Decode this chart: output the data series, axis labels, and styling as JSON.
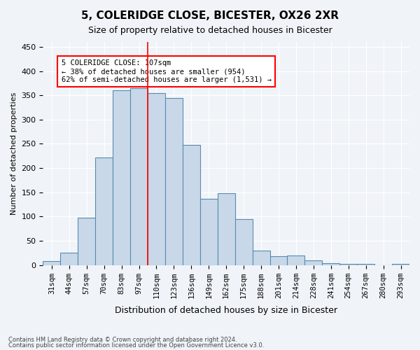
{
  "title1": "5, COLERIDGE CLOSE, BICESTER, OX26 2XR",
  "title2": "Size of property relative to detached houses in Bicester",
  "xlabel": "Distribution of detached houses by size in Bicester",
  "ylabel": "Number of detached properties",
  "categories": [
    "31sqm",
    "44sqm",
    "57sqm",
    "70sqm",
    "83sqm",
    "97sqm",
    "110sqm",
    "123sqm",
    "136sqm",
    "149sqm",
    "162sqm",
    "175sqm",
    "188sqm",
    "201sqm",
    "214sqm",
    "228sqm",
    "241sqm",
    "254sqm",
    "267sqm",
    "280sqm",
    "293sqm"
  ],
  "values": [
    8,
    25,
    98,
    222,
    360,
    365,
    355,
    345,
    248,
    136,
    148,
    95,
    30,
    19,
    20,
    10,
    4,
    2,
    3,
    0,
    2
  ],
  "bar_color": "#c8d8e8",
  "bar_edge_color": "#5a8ab0",
  "vline_x": 5.5,
  "vline_color": "red",
  "annotation_text": "5 COLERIDGE CLOSE: 107sqm\n← 38% of detached houses are smaller (954)\n62% of semi-detached houses are larger (1,531) →",
  "annotation_box_color": "white",
  "annotation_box_edge_color": "red",
  "ylim": [
    0,
    460
  ],
  "footnote1": "Contains HM Land Registry data © Crown copyright and database right 2024.",
  "footnote2": "Contains public sector information licensed under the Open Government Licence v3.0.",
  "bg_color": "#f0f4f8"
}
